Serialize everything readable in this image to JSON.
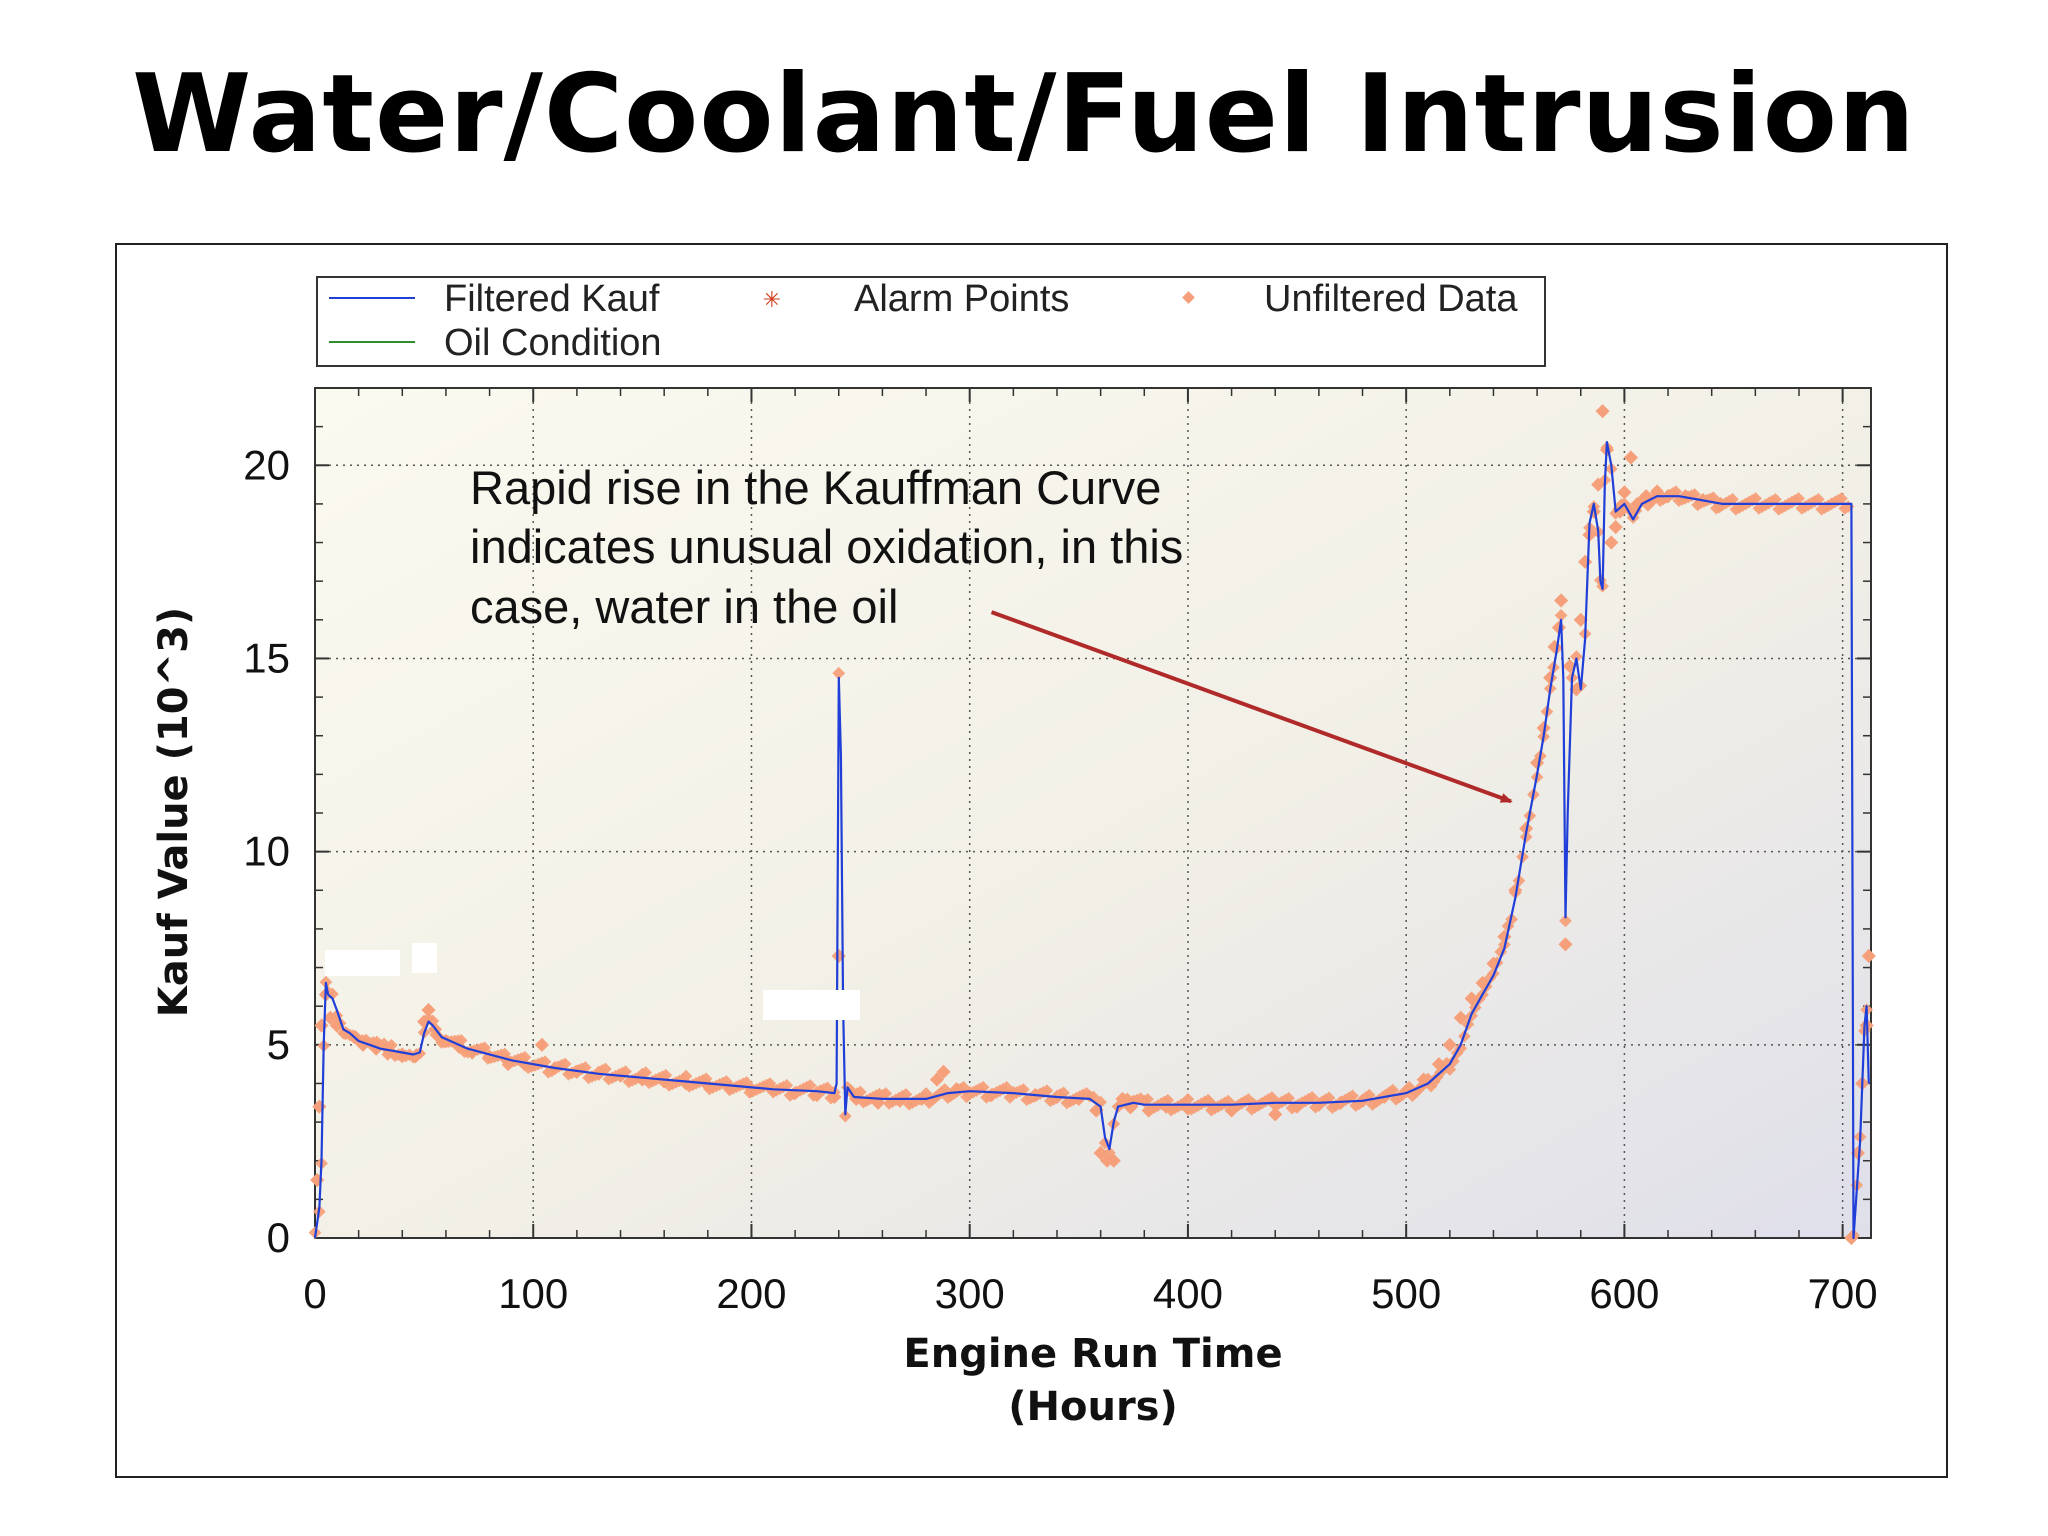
{
  "slide": {
    "title": "Water/Coolant/Fuel Intrusion"
  },
  "chart_data": {
    "type": "line",
    "title": "",
    "xlabel_line1": "Engine Run Time",
    "xlabel_line2": "(Hours)",
    "ylabel": "Kauf Value (10^3)",
    "xlim": [
      0,
      713
    ],
    "ylim": [
      0,
      22
    ],
    "x_ticks": [
      0,
      100,
      200,
      300,
      400,
      500,
      600,
      700
    ],
    "y_ticks": [
      0,
      5,
      10,
      15,
      20
    ],
    "grid": true,
    "legend_position": "top",
    "legend": [
      {
        "label": "Filtered Kauf",
        "kind": "line",
        "color": "#1f3fd8"
      },
      {
        "label": "Alarm Points",
        "kind": "star",
        "color": "#d23a1a"
      },
      {
        "label": "Unfiltered Data",
        "kind": "diamond",
        "color": "#f5a07a"
      },
      {
        "label": "Oil Condition",
        "kind": "line",
        "color": "#2e8b2e"
      }
    ],
    "annotation": {
      "lines": [
        "Rapid rise in the Kauffman Curve",
        "indicates unusual oxidation, in this",
        "case, water in the oil"
      ],
      "arrow_from": [
        310,
        16.2
      ],
      "arrow_to": [
        548,
        11.3
      ],
      "arrow_color": "#b02a2a"
    },
    "series": [
      {
        "name": "Filtered Kauf",
        "color": "#1f3fd8",
        "points": [
          [
            0,
            0
          ],
          [
            2,
            0.8
          ],
          [
            3,
            2
          ],
          [
            4,
            5
          ],
          [
            5,
            6.6
          ],
          [
            6,
            6.3
          ],
          [
            8,
            6.2
          ],
          [
            10,
            5.9
          ],
          [
            13,
            5.4
          ],
          [
            16,
            5.3
          ],
          [
            20,
            5.1
          ],
          [
            25,
            5.0
          ],
          [
            30,
            4.9
          ],
          [
            35,
            4.85
          ],
          [
            40,
            4.8
          ],
          [
            45,
            4.75
          ],
          [
            48,
            4.8
          ],
          [
            50,
            5.3
          ],
          [
            52,
            5.6
          ],
          [
            54,
            5.5
          ],
          [
            58,
            5.2
          ],
          [
            70,
            4.9
          ],
          [
            90,
            4.6
          ],
          [
            110,
            4.4
          ],
          [
            130,
            4.25
          ],
          [
            150,
            4.15
          ],
          [
            170,
            4.05
          ],
          [
            190,
            3.95
          ],
          [
            210,
            3.85
          ],
          [
            230,
            3.8
          ],
          [
            238,
            3.75
          ],
          [
            239,
            4
          ],
          [
            240,
            14.5
          ],
          [
            241,
            12.5
          ],
          [
            242,
            6
          ],
          [
            243,
            3.2
          ],
          [
            244,
            3.9
          ],
          [
            247,
            3.65
          ],
          [
            260,
            3.6
          ],
          [
            280,
            3.6
          ],
          [
            290,
            3.75
          ],
          [
            300,
            3.8
          ],
          [
            320,
            3.75
          ],
          [
            340,
            3.65
          ],
          [
            355,
            3.6
          ],
          [
            360,
            3.4
          ],
          [
            362,
            2.6
          ],
          [
            364,
            2.3
          ],
          [
            366,
            3.0
          ],
          [
            368,
            3.4
          ],
          [
            375,
            3.5
          ],
          [
            380,
            3.45
          ],
          [
            400,
            3.45
          ],
          [
            420,
            3.45
          ],
          [
            440,
            3.5
          ],
          [
            460,
            3.5
          ],
          [
            480,
            3.55
          ],
          [
            500,
            3.75
          ],
          [
            510,
            4.0
          ],
          [
            520,
            4.5
          ],
          [
            525,
            5.0
          ],
          [
            530,
            5.8
          ],
          [
            535,
            6.3
          ],
          [
            540,
            6.8
          ],
          [
            545,
            7.5
          ],
          [
            550,
            8.8
          ],
          [
            555,
            10.5
          ],
          [
            560,
            12.0
          ],
          [
            563,
            13.0
          ],
          [
            566,
            14.2
          ],
          [
            569,
            15.2
          ],
          [
            571,
            16.0
          ],
          [
            572,
            14.5
          ],
          [
            573,
            8.3
          ],
          [
            574,
            11
          ],
          [
            576,
            14.5
          ],
          [
            578,
            15
          ],
          [
            580,
            14.2
          ],
          [
            582,
            15.5
          ],
          [
            584,
            18.5
          ],
          [
            586,
            19.0
          ],
          [
            588,
            18.3
          ],
          [
            589,
            17.0
          ],
          [
            590,
            16.8
          ],
          [
            591,
            19.5
          ],
          [
            592,
            20.6
          ],
          [
            594,
            20
          ],
          [
            596,
            18.8
          ],
          [
            600,
            19.0
          ],
          [
            604,
            18.6
          ],
          [
            608,
            19.0
          ],
          [
            615,
            19.2
          ],
          [
            625,
            19.2
          ],
          [
            635,
            19.1
          ],
          [
            645,
            19.0
          ],
          [
            704,
            19.0
          ],
          [
            705,
            0
          ],
          [
            708,
            2.5
          ],
          [
            710,
            5.5
          ],
          [
            711,
            6
          ],
          [
            712,
            4
          ]
        ]
      }
    ],
    "unfiltered_data": {
      "name": "Unfiltered Data",
      "color": "#f5a07a",
      "points": [
        [
          1,
          1.5
        ],
        [
          2,
          3.4
        ],
        [
          3,
          5.5
        ],
        [
          5,
          6.3
        ],
        [
          7,
          5.7
        ],
        [
          10,
          5.5
        ],
        [
          14,
          5.3
        ],
        [
          18,
          5.2
        ],
        [
          22,
          5.0
        ],
        [
          28,
          4.9
        ],
        [
          34,
          4.85
        ],
        [
          40,
          4.75
        ],
        [
          46,
          4.7
        ],
        [
          50,
          5.6
        ],
        [
          52,
          5.9
        ],
        [
          55,
          5.4
        ],
        [
          60,
          5.1
        ],
        [
          66,
          4.95
        ],
        [
          72,
          4.8
        ],
        [
          80,
          4.7
        ],
        [
          88,
          4.6
        ],
        [
          96,
          4.5
        ],
        [
          104,
          5.0
        ],
        [
          110,
          4.4
        ],
        [
          120,
          4.3
        ],
        [
          130,
          4.25
        ],
        [
          140,
          4.2
        ],
        [
          150,
          4.1
        ],
        [
          160,
          4.05
        ],
        [
          170,
          4.0
        ],
        [
          180,
          3.95
        ],
        [
          190,
          3.9
        ],
        [
          200,
          3.85
        ],
        [
          210,
          3.8
        ],
        [
          220,
          3.75
        ],
        [
          230,
          3.7
        ],
        [
          238,
          3.65
        ],
        [
          240,
          7.3
        ],
        [
          248,
          3.6
        ],
        [
          258,
          3.5
        ],
        [
          268,
          3.55
        ],
        [
          278,
          3.6
        ],
        [
          285,
          4.1
        ],
        [
          288,
          4.3
        ],
        [
          294,
          3.85
        ],
        [
          300,
          3.75
        ],
        [
          310,
          3.7
        ],
        [
          320,
          3.75
        ],
        [
          330,
          3.7
        ],
        [
          340,
          3.65
        ],
        [
          350,
          3.6
        ],
        [
          358,
          3.3
        ],
        [
          360,
          2.2
        ],
        [
          363,
          2.0
        ],
        [
          366,
          2.0
        ],
        [
          370,
          3.6
        ],
        [
          374,
          3.4
        ],
        [
          382,
          3.3
        ],
        [
          390,
          3.4
        ],
        [
          400,
          3.35
        ],
        [
          410,
          3.5
        ],
        [
          420,
          3.3
        ],
        [
          430,
          3.45
        ],
        [
          440,
          3.2
        ],
        [
          450,
          3.4
        ],
        [
          460,
          3.45
        ],
        [
          470,
          3.5
        ],
        [
          480,
          3.55
        ],
        [
          490,
          3.65
        ],
        [
          500,
          3.8
        ],
        [
          508,
          4.1
        ],
        [
          515,
          4.5
        ],
        [
          520,
          5.0
        ],
        [
          525,
          5.7
        ],
        [
          530,
          6.2
        ],
        [
          535,
          6.6
        ],
        [
          540,
          7.1
        ],
        [
          545,
          7.8
        ],
        [
          550,
          9.0
        ],
        [
          555,
          10.6
        ],
        [
          560,
          12.3
        ],
        [
          563,
          13.2
        ],
        [
          566,
          14.5
        ],
        [
          568,
          15.3
        ],
        [
          570,
          15.8
        ],
        [
          571,
          16.5
        ],
        [
          573,
          7.6
        ],
        [
          575,
          14.8
        ],
        [
          578,
          14.2
        ],
        [
          580,
          16.0
        ],
        [
          582,
          17.5
        ],
        [
          584,
          18.2
        ],
        [
          586,
          18.8
        ],
        [
          588,
          19.5
        ],
        [
          590,
          21.4
        ],
        [
          592,
          20.4
        ],
        [
          594,
          18.0
        ],
        [
          596,
          18.4
        ],
        [
          598,
          18.8
        ],
        [
          600,
          19.3
        ],
        [
          603,
          20.2
        ],
        [
          606,
          19.0
        ],
        [
          610,
          19.2
        ],
        [
          615,
          19.3
        ],
        [
          620,
          19.2
        ],
        [
          628,
          19.2
        ],
        [
          636,
          19.1
        ],
        [
          644,
          19.0
        ],
        [
          704,
          0
        ],
        [
          707,
          2.2
        ],
        [
          709,
          4.0
        ],
        [
          711,
          5.5
        ],
        [
          712,
          7.3
        ]
      ]
    }
  }
}
